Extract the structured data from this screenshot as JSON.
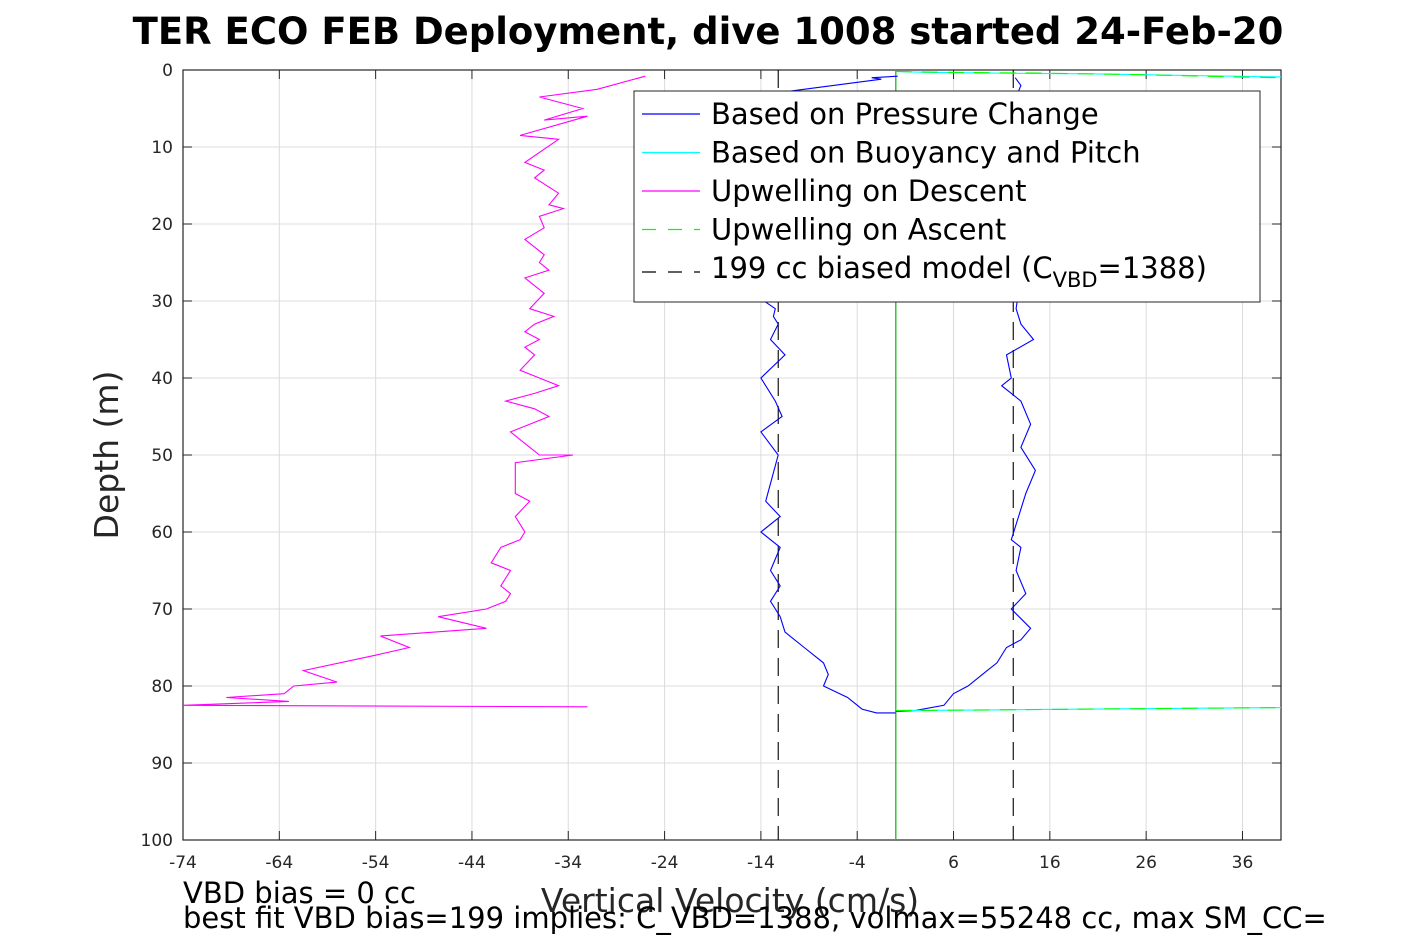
{
  "chart_data": {
    "type": "line",
    "title": "TER ECO FEB Deployment, dive 1008 started 24-Feb-20",
    "xlabel": "Vertical Velocity (cm/s)",
    "ylabel": "Depth (m)",
    "xlim": [
      -74,
      40
    ],
    "ylim": [
      0,
      100
    ],
    "y_reversed": true,
    "grid": true,
    "legend_position": "top-right",
    "xticks": [
      "-74",
      "-64",
      "-54",
      "-44",
      "-34",
      "-24",
      "-14",
      "-4",
      "6",
      "16",
      "26",
      "36"
    ],
    "yticks": [
      "0",
      "10",
      "20",
      "30",
      "40",
      "50",
      "60",
      "70",
      "80",
      "90",
      "100"
    ],
    "legend": {
      "items": [
        {
          "label": "Based on Pressure Change",
          "color": "#0000ff",
          "dash": "solid"
        },
        {
          "label": "Based on Buoyancy and Pitch",
          "color": "#00ffff",
          "dash": "solid"
        },
        {
          "label": "Upwelling on Descent",
          "color": "#ff00ff",
          "dash": "solid"
        },
        {
          "label": "Upwelling on Ascent",
          "color": "#00ff00",
          "dash": "dashed"
        }
      ],
      "model": {
        "prefix": "199 cc biased model (C",
        "sub": "VBD",
        "suffix": "=1388)",
        "color": "#000000"
      }
    },
    "series": [
      {
        "name": "Based on Pressure Change",
        "color": "#0000ff",
        "x": [
          0.2,
          -2.5,
          -1.5,
          -12.5,
          -26.5,
          -26,
          -23,
          -16,
          -12.5,
          -12.7,
          -12.2,
          -13,
          -11.5,
          -14,
          -12.5,
          -11.8,
          -14,
          -12.2,
          -13.5,
          -12,
          -14,
          -12,
          -13,
          -12,
          -13,
          -12,
          -11.5,
          -9.5,
          -7.5,
          -7,
          -7.5,
          -5,
          -3.5,
          -2,
          0
        ],
        "y": [
          0.8,
          1,
          1.2,
          3,
          6.5,
          9,
          11,
          28,
          31,
          32,
          33,
          35,
          37,
          40,
          43,
          45,
          47,
          50,
          56,
          58,
          60,
          62,
          65,
          67,
          69,
          71,
          73,
          75,
          77,
          78.5,
          80,
          81.5,
          83,
          83.5,
          83.5
        ]
      },
      {
        "name": "Based on Pressure Change (ascent)",
        "color": "#0000ff",
        "x": [
          0,
          2,
          5,
          6,
          7.5,
          8.5,
          9.5,
          10.5,
          11.5,
          13,
          14,
          12,
          13.5,
          12.5,
          13,
          12,
          13.5,
          14.5,
          13,
          14,
          13,
          11,
          12,
          11.5,
          14.3,
          13,
          12.5,
          13.8,
          11.5,
          12,
          13,
          12.4
        ],
        "y": [
          83.3,
          83.2,
          82.5,
          81,
          80,
          79,
          78,
          77,
          75,
          74,
          72.5,
          70,
          68,
          65,
          62,
          61,
          55,
          52,
          49,
          46,
          43,
          41,
          40,
          37,
          35,
          33,
          31,
          20,
          10,
          5,
          2,
          1
        ]
      },
      {
        "name": "Based on Buoyancy and Pitch",
        "color": "#00ffff",
        "x": [
          0,
          3,
          10,
          20,
          30,
          40
        ],
        "y": [
          0.2,
          0.3,
          0.4,
          0.5,
          0.7,
          0.9
        ]
      },
      {
        "name": "Based on Buoyancy and Pitch (ascent)",
        "color": "#00ffff",
        "x": [
          0,
          10,
          20,
          30,
          40
        ],
        "y": [
          83.2,
          83.1,
          83.0,
          82.9,
          82.8
        ]
      },
      {
        "name": "Upwelling on Descent",
        "color": "#ff00ff",
        "x": [
          -26,
          -31,
          -37,
          -32.5,
          -36.5,
          -32,
          -39,
          -35,
          -38.5,
          -36.5,
          -37.5,
          -35,
          -36,
          -34.5,
          -37,
          -36.5,
          -38.5,
          -36.5,
          -37,
          -36,
          -38.5,
          -36.5,
          -38,
          -35.5,
          -37.5,
          -38.5,
          -37,
          -38.5,
          -37.5,
          -39,
          -37,
          -35,
          -37.5,
          -40.5,
          -37.5,
          -36,
          -38,
          -40,
          -38,
          -37,
          -33.5,
          -39.5,
          -39.5,
          -38,
          -39.5,
          -38.5,
          -39,
          -41,
          -42,
          -40,
          -41,
          -40,
          -40.5,
          -42.5,
          -47.5,
          -42.5,
          -53.5,
          -50.5,
          -54,
          -61.5,
          -58,
          -62.5,
          -63.5,
          -69.5,
          -63,
          -74,
          -32
        ],
        "y": [
          0.8,
          2.5,
          3.5,
          5,
          6.5,
          6,
          8.5,
          9,
          12,
          13,
          14,
          16,
          17.5,
          18,
          19,
          20.5,
          22,
          24,
          25,
          26,
          27,
          29,
          31,
          32,
          33,
          34,
          35,
          36,
          37,
          39,
          40,
          41,
          42,
          43,
          44,
          45,
          46,
          47,
          49,
          50,
          50,
          51,
          55,
          56,
          58,
          60,
          61,
          62,
          64,
          65,
          67,
          68,
          69,
          70,
          71,
          72.5,
          73.5,
          75,
          76,
          78,
          79.5,
          80,
          81,
          81.5,
          82,
          82.5,
          82.7
        ]
      },
      {
        "name": "Upwelling on Ascent",
        "color": "#00ff00",
        "dashed": true,
        "x": [
          0,
          10,
          20,
          30,
          40
        ],
        "y": [
          83.2,
          83.1,
          83.0,
          82.9,
          82.8
        ]
      },
      {
        "name": "Upwelling on Ascent (surface)",
        "color": "#00ff00",
        "dashed": true,
        "x": [
          0,
          5,
          15,
          25,
          35,
          40
        ],
        "y": [
          0.2,
          0.3,
          0.4,
          0.6,
          0.9,
          1.0
        ]
      }
    ],
    "reference_lines": [
      {
        "x": -12.2,
        "style": "dashed",
        "color": "#000000"
      },
      {
        "x": 12.2,
        "style": "dashed",
        "color": "#000000"
      },
      {
        "x": 0,
        "style": "solid",
        "color": "#000000"
      },
      {
        "x": 0,
        "style": "solid",
        "color": "#00ff00"
      }
    ]
  },
  "footer": {
    "line1": "VBD bias = 0 cc",
    "line2": "best fit VBD bias=199 implies: C_VBD=1388, volmax=55248 cc, max SM_CC="
  }
}
